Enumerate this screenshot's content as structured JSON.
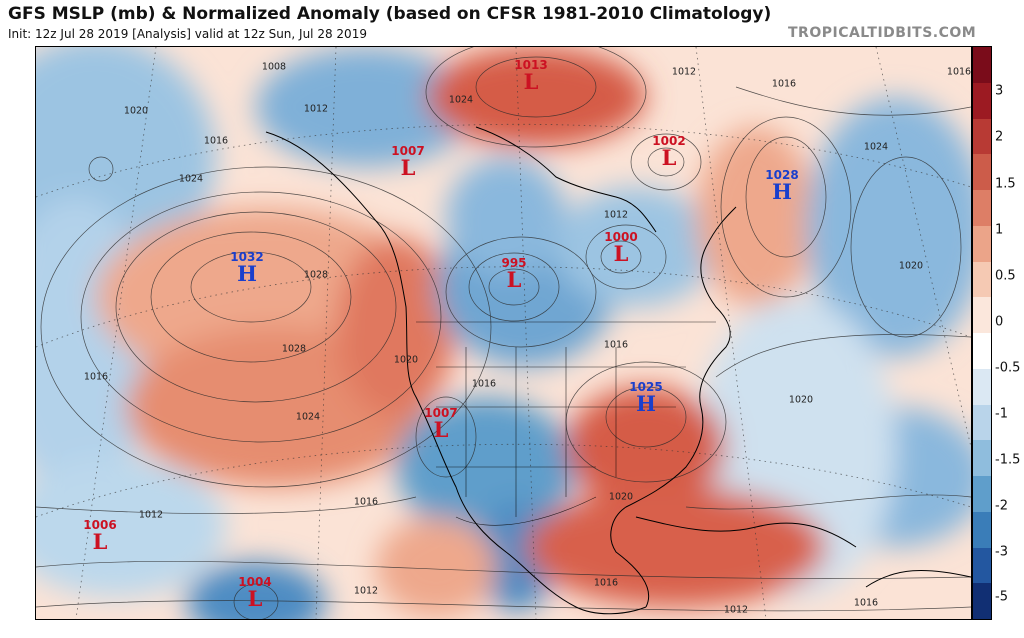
{
  "header": {
    "title": "GFS MSLP (mb) & Normalized Anomaly (based on CFSR 1981-2010 Climatology)",
    "subtitle": "Init: 12z Jul 28 2019   [Analysis]   valid at 12z Sun, Jul 28 2019",
    "brand": "TROPICALTIDBITS.COM"
  },
  "colorbar": {
    "labels": [
      "3",
      "2",
      "1.5",
      "1",
      "0.5",
      "0",
      "-0.5",
      "-1",
      "-1.5",
      "-2",
      "-3",
      "-5"
    ],
    "colors": [
      "#7a0c1a",
      "#9c1a22",
      "#b83a34",
      "#cc5c4a",
      "#dd7e66",
      "#eba489",
      "#f5c9b3",
      "#fbe7dc",
      "#ffffff",
      "#dbe8f3",
      "#b9d4ea",
      "#8fbddd",
      "#5f9ecb",
      "#3a7db8",
      "#2357a0",
      "#112f73"
    ]
  },
  "systems": [
    {
      "type": "L",
      "value": "1013"
    },
    {
      "type": "L",
      "value": "1002"
    },
    {
      "type": "H",
      "value": "1028"
    },
    {
      "type": "L",
      "value": "1007"
    },
    {
      "type": "H",
      "value": "1032"
    },
    {
      "type": "L",
      "value": "995"
    },
    {
      "type": "L",
      "value": "1000"
    },
    {
      "type": "H",
      "value": "1025"
    },
    {
      "type": "L",
      "value": "1007"
    },
    {
      "type": "L",
      "value": "1006"
    },
    {
      "type": "L",
      "value": "1004"
    }
  ],
  "isobar_labels": [
    "1008",
    "1012",
    "1016",
    "1020",
    "1024",
    "1028"
  ]
}
